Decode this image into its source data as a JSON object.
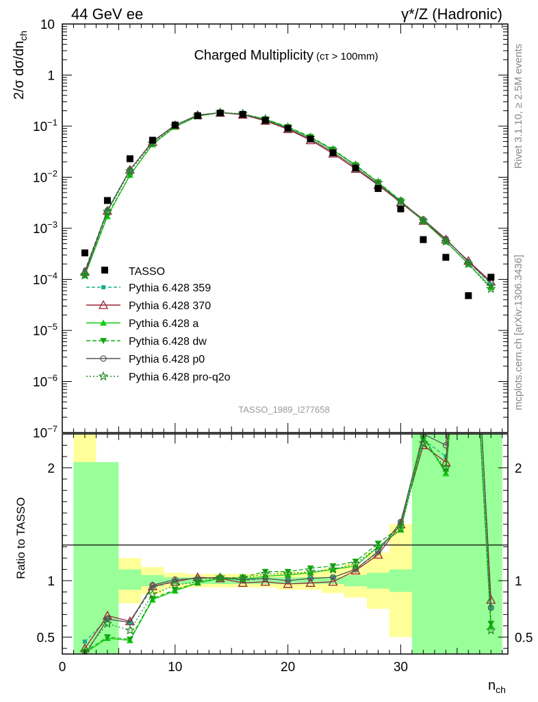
{
  "header": {
    "left": "44 GeV ee",
    "right": "γ*/Z (Hadronic)"
  },
  "side": {
    "rivet": "Rivet 3.1.10, ≥ 2.5M events",
    "mcplots": "mcplots.cern.ch [arXiv:1306.3436]"
  },
  "chart_data": {
    "type": "line",
    "title": "Charged Multiplicity",
    "title_sub": "(cτ > 100mm)",
    "watermark": "TASSO_1989_I277658",
    "ylabel": "2/σ dσ/dn",
    "ylabel_sub": "ch",
    "xlabel": "n",
    "xlabel_sub": "ch",
    "ratio_ylabel": "Ratio to TASSO",
    "xlim": [
      0,
      39.5
    ],
    "ylim": [
      1e-07,
      10
    ],
    "yscale": "log",
    "ratio_ylim": [
      0.35,
      2.3
    ],
    "x_ticks": [
      0,
      10,
      20,
      30
    ],
    "y_ticks": [
      {
        "v": 10,
        "b": "10",
        "e": ""
      },
      {
        "v": 1,
        "b": "1",
        "e": ""
      },
      {
        "v": 0.1,
        "b": "10",
        "e": "−1"
      },
      {
        "v": 0.01,
        "b": "10",
        "e": "−2"
      },
      {
        "v": 0.001,
        "b": "10",
        "e": "−3"
      },
      {
        "v": 0.0001,
        "b": "10",
        "e": "−4"
      },
      {
        "v": 1e-05,
        "b": "10",
        "e": "−5"
      },
      {
        "v": 1e-06,
        "b": "10",
        "e": "−6"
      },
      {
        "v": 1e-07,
        "b": "10",
        "e": "−7"
      }
    ],
    "ratio_ticks": [
      0.5,
      1,
      2
    ],
    "x": [
      2,
      4,
      6,
      8,
      10,
      12,
      14,
      16,
      18,
      20,
      22,
      24,
      26,
      28,
      30,
      32,
      34,
      36,
      38
    ],
    "data": {
      "name": "TASSO",
      "values": [
        0.00033,
        0.0035,
        0.023,
        0.053,
        0.105,
        0.16,
        0.18,
        0.17,
        0.13,
        0.09,
        0.056,
        0.03,
        0.015,
        0.006,
        0.0024,
        0.0006,
        0.00027,
        4.8e-05,
        0.00011
      ],
      "stat_band": [
        [
          1,
          5,
          0.3,
          2.05
        ],
        [
          5,
          7,
          0.92,
          1.1
        ],
        [
          7,
          9,
          0.95,
          1.05
        ],
        [
          9,
          25,
          0.97,
          1.03
        ],
        [
          25,
          27,
          0.95,
          1.05
        ],
        [
          27,
          29,
          0.93,
          1.07
        ],
        [
          29,
          31,
          0.9,
          1.1
        ],
        [
          31,
          33,
          0.3,
          2.6
        ],
        [
          33,
          39,
          0.3,
          2.6
        ]
      ],
      "syst_band": [
        [
          1,
          3,
          0.3,
          2.6
        ],
        [
          3,
          5,
          0.3,
          1.9
        ],
        [
          5,
          7,
          0.8,
          1.2
        ],
        [
          7,
          9,
          0.88,
          1.12
        ],
        [
          9,
          11,
          0.93,
          1.07
        ],
        [
          11,
          19,
          0.94,
          1.06
        ],
        [
          19,
          23,
          0.92,
          1.08
        ],
        [
          23,
          25,
          0.89,
          1.11
        ],
        [
          25,
          27,
          0.85,
          1.15
        ],
        [
          27,
          29,
          0.75,
          1.25
        ],
        [
          29,
          31,
          0.5,
          1.5
        ],
        [
          31,
          33,
          0.3,
          1.7
        ],
        [
          33,
          35,
          0.3,
          1.9
        ],
        [
          35,
          39,
          0.3,
          2.6
        ]
      ]
    },
    "series": [
      {
        "name": "Pythia 6.428 359",
        "color": "#1aaf8c",
        "dash": "5,3",
        "marker": "square",
        "values": [
          0.00015,
          0.0023,
          0.014,
          0.05,
          0.105,
          0.163,
          0.185,
          0.17,
          0.13,
          0.09,
          0.056,
          0.031,
          0.0155,
          0.0073,
          0.0033,
          0.0014,
          0.0006,
          0.00022,
          8e-05
        ],
        "ratio": [
          0.46,
          0.66,
          0.63,
          0.94,
          1.0,
          1.02,
          1.03,
          1.0,
          1.02,
          1.0,
          1.02,
          1.03,
          1.1,
          1.25,
          1.52,
          2.25,
          2.1,
          4.5,
          0.76
        ]
      },
      {
        "name": "Pythia 6.428 370",
        "color": "#992233",
        "dash": "",
        "marker": "triangle-open",
        "values": [
          0.00014,
          0.0022,
          0.014,
          0.049,
          0.104,
          0.165,
          0.183,
          0.167,
          0.127,
          0.087,
          0.053,
          0.029,
          0.0145,
          0.007,
          0.0032,
          0.0014,
          0.0006,
          0.00023,
          9e-05
        ],
        "ratio": [
          0.4,
          0.69,
          0.64,
          0.95,
          0.99,
          1.03,
          1.02,
          0.98,
          0.99,
          0.97,
          0.98,
          0.99,
          1.09,
          1.23,
          1.5,
          2.2,
          2.05,
          4.5,
          0.83
        ]
      },
      {
        "name": "Pythia 6.428 a",
        "color": "#11cc11",
        "dash": "",
        "marker": "triangle",
        "values": [
          0.00012,
          0.0017,
          0.011,
          0.044,
          0.097,
          0.157,
          0.183,
          0.172,
          0.135,
          0.095,
          0.06,
          0.034,
          0.017,
          0.0078,
          0.0034,
          0.0014,
          0.00055,
          0.0002,
          7e-05
        ],
        "ratio": [
          0.36,
          0.49,
          0.47,
          0.83,
          0.91,
          0.98,
          1.02,
          1.01,
          1.04,
          1.05,
          1.07,
          1.1,
          1.13,
          1.3,
          1.45,
          2.28,
          1.95,
          4.2,
          0.6
        ]
      },
      {
        "name": "Pythia 6.428 dw",
        "color": "#11aa11",
        "dash": "6,3",
        "marker": "triangle-down",
        "values": [
          0.00012,
          0.0018,
          0.011,
          0.044,
          0.097,
          0.157,
          0.183,
          0.172,
          0.138,
          0.097,
          0.062,
          0.035,
          0.0174,
          0.008,
          0.0035,
          0.0014,
          0.00055,
          0.0002,
          7e-05
        ],
        "ratio": [
          0.37,
          0.5,
          0.48,
          0.84,
          0.92,
          0.98,
          1.02,
          1.03,
          1.08,
          1.08,
          1.11,
          1.13,
          1.17,
          1.33,
          1.48,
          2.26,
          1.97,
          4.2,
          0.62
        ]
      },
      {
        "name": "Pythia 6.428 p0",
        "color": "#555555",
        "dash": "",
        "marker": "circle-open",
        "values": [
          0.00013,
          0.0022,
          0.014,
          0.05,
          0.105,
          0.163,
          0.185,
          0.17,
          0.13,
          0.09,
          0.056,
          0.031,
          0.0155,
          0.0073,
          0.0033,
          0.0015,
          0.00062,
          0.00022,
          8.5e-05
        ],
        "ratio": [
          0.34,
          0.66,
          0.63,
          0.96,
          1.01,
          1.02,
          1.03,
          1.01,
          1.02,
          1.0,
          1.02,
          1.03,
          1.1,
          1.26,
          1.52,
          2.3,
          2.2,
          4.6,
          0.76
        ]
      },
      {
        "name": "Pythia 6.428 pro-q2o",
        "color": "#228822",
        "dash": "2,3",
        "marker": "star-open",
        "values": [
          0.00012,
          0.0021,
          0.013,
          0.046,
          0.1,
          0.16,
          0.185,
          0.175,
          0.138,
          0.095,
          0.06,
          0.034,
          0.017,
          0.0078,
          0.0034,
          0.0014,
          0.00055,
          0.0002,
          6.5e-05
        ],
        "ratio": [
          0.37,
          0.62,
          0.56,
          0.88,
          0.96,
          0.99,
          1.03,
          1.02,
          1.06,
          1.06,
          1.08,
          1.1,
          1.15,
          1.3,
          1.46,
          2.22,
          2.0,
          4.2,
          0.56
        ]
      }
    ]
  }
}
